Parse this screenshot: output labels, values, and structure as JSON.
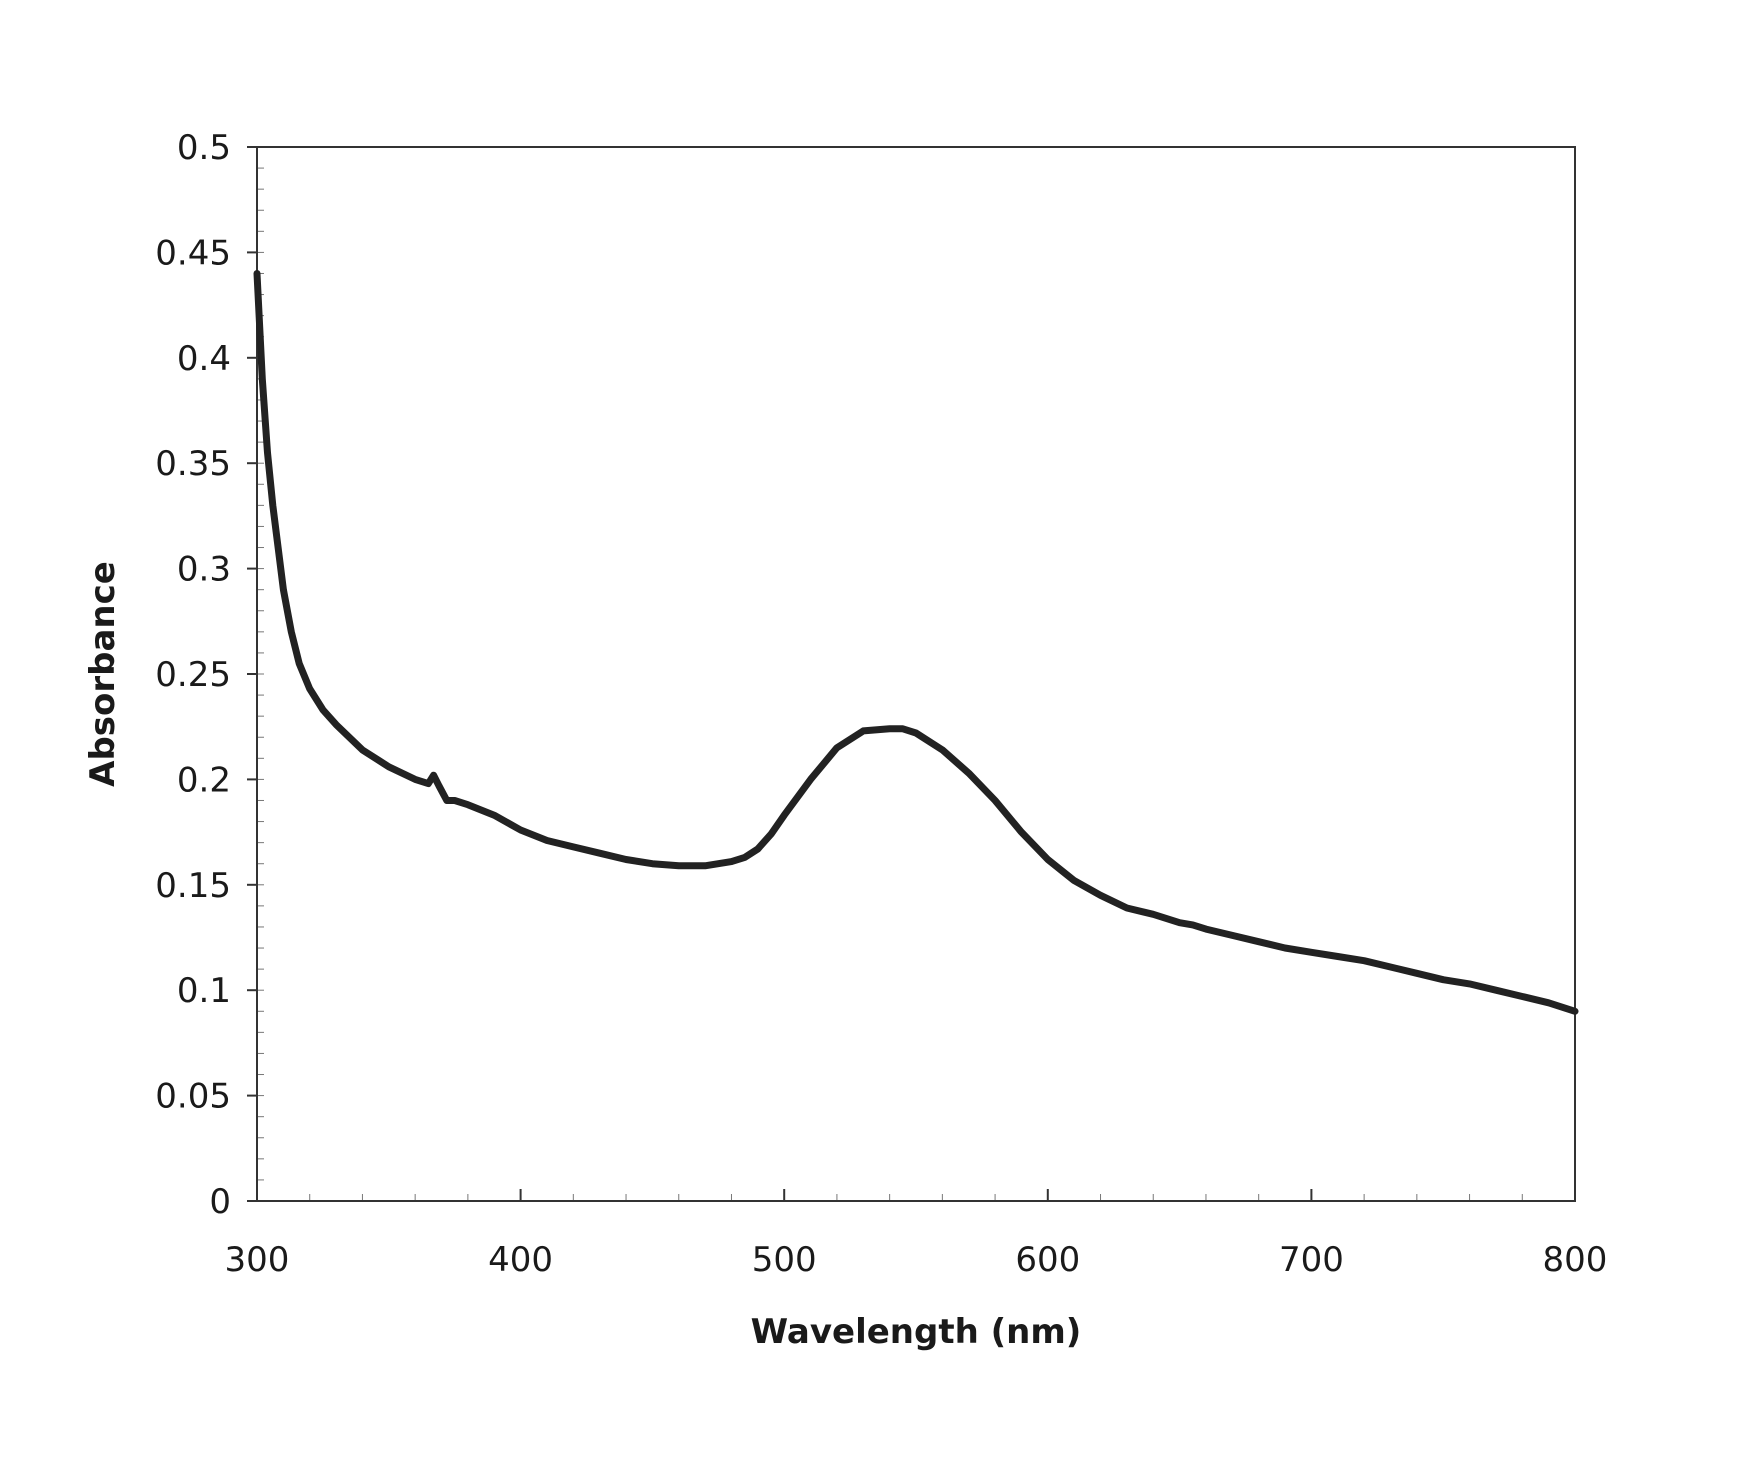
{
  "chart_data": {
    "type": "line",
    "title": "",
    "xlabel": "Wavelength (nm)",
    "ylabel": "Absorbance",
    "xlim": [
      300,
      800
    ],
    "ylim": [
      0,
      0.5
    ],
    "x_ticks": [
      300,
      400,
      500,
      600,
      700,
      800
    ],
    "x_tick_labels": [
      "300",
      "400",
      "500",
      "600",
      "700",
      "800"
    ],
    "y_ticks": [
      0,
      0.05,
      0.1,
      0.15,
      0.2,
      0.25,
      0.3,
      0.35,
      0.4,
      0.45,
      0.5
    ],
    "y_tick_labels": [
      "0",
      "0.05",
      "0.1",
      "0.15",
      "0.2",
      "0.25",
      "0.3",
      "0.35",
      "0.4",
      "0.45",
      "0.5"
    ],
    "grid": false,
    "legend": "none",
    "line_color": "#222222",
    "series": [
      {
        "x": [
          300,
          302,
          304,
          306,
          308,
          310,
          313,
          316,
          320,
          325,
          330,
          340,
          350,
          360,
          365,
          367,
          369,
          372,
          375,
          380,
          390,
          400,
          410,
          420,
          430,
          440,
          450,
          460,
          470,
          480,
          485,
          490,
          495,
          500,
          510,
          520,
          530,
          540,
          545,
          550,
          560,
          570,
          580,
          590,
          600,
          610,
          620,
          630,
          640,
          650,
          655,
          660,
          670,
          680,
          690,
          700,
          710,
          720,
          730,
          740,
          750,
          760,
          770,
          780,
          790,
          800
        ],
        "y": [
          0.44,
          0.39,
          0.355,
          0.33,
          0.31,
          0.29,
          0.27,
          0.255,
          0.243,
          0.233,
          0.226,
          0.214,
          0.206,
          0.2,
          0.198,
          0.202,
          0.197,
          0.19,
          0.19,
          0.188,
          0.183,
          0.176,
          0.171,
          0.168,
          0.165,
          0.162,
          0.16,
          0.159,
          0.159,
          0.161,
          0.163,
          0.167,
          0.174,
          0.183,
          0.2,
          0.215,
          0.223,
          0.224,
          0.224,
          0.222,
          0.214,
          0.203,
          0.19,
          0.175,
          0.162,
          0.152,
          0.145,
          0.139,
          0.136,
          0.132,
          0.131,
          0.129,
          0.126,
          0.123,
          0.12,
          0.118,
          0.116,
          0.114,
          0.111,
          0.108,
          0.105,
          0.103,
          0.1,
          0.097,
          0.094,
          0.09
        ]
      }
    ]
  }
}
